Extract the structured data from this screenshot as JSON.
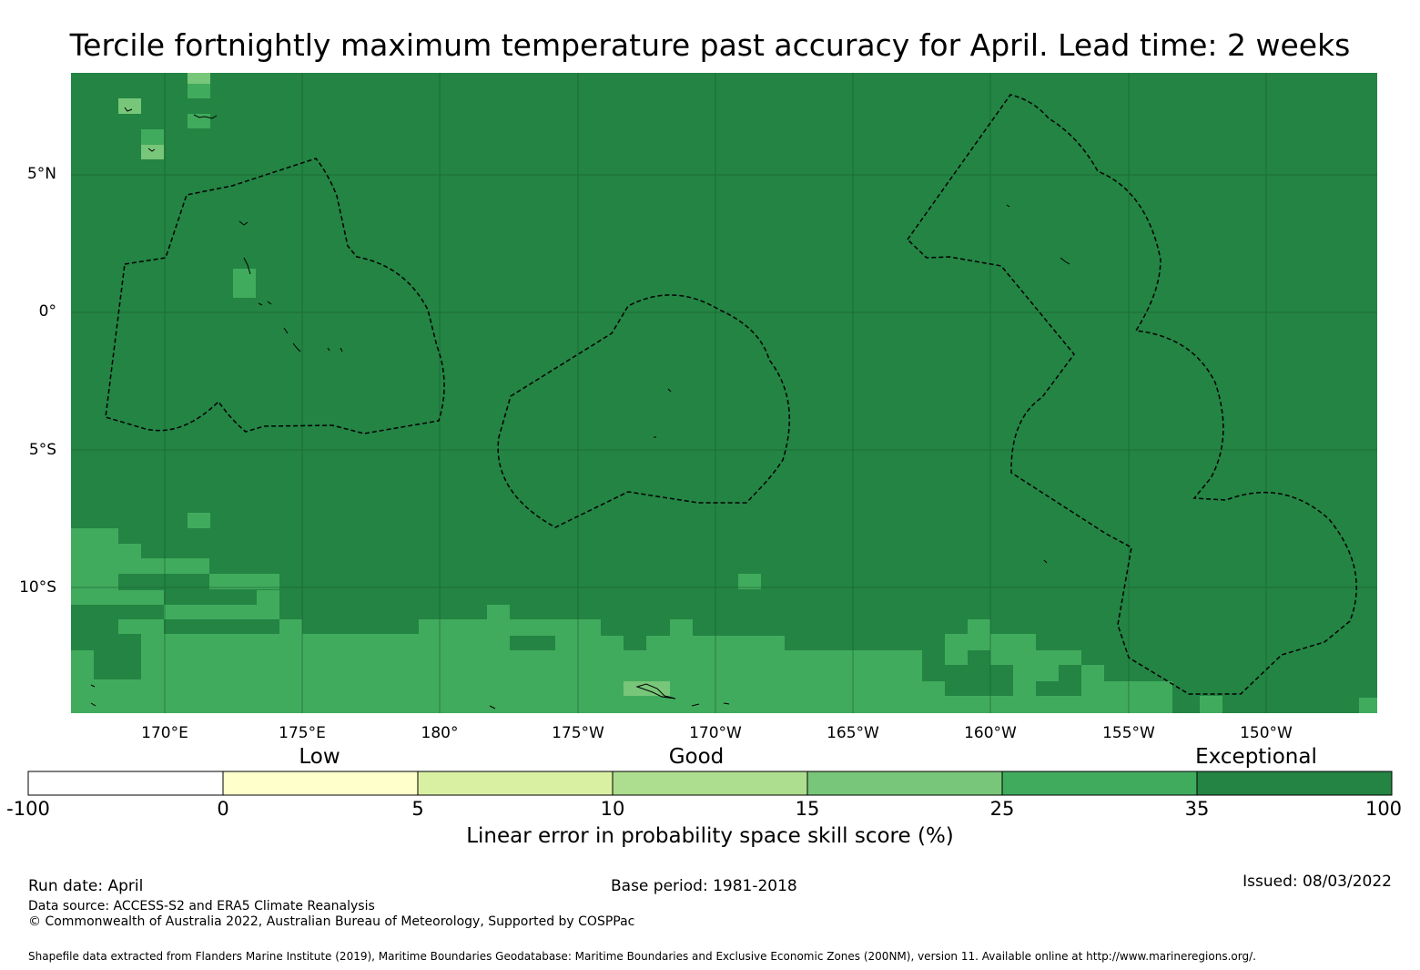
{
  "title": "Tercile fortnightly maximum temperature past accuracy for April. Lead time: 2 weeks",
  "axes": {
    "lat_labels": [
      "5°N",
      "0°",
      "5°S",
      "10°S"
    ],
    "lon_labels": [
      "170°E",
      "175°E",
      "180°",
      "175°W",
      "170°W",
      "165°W",
      "160°W",
      "155°W",
      "150°W"
    ]
  },
  "legend": {
    "categories": [
      "Low",
      "Good",
      "Exceptional"
    ],
    "ticks": [
      "-100",
      "0",
      "5",
      "10",
      "15",
      "25",
      "35",
      "100"
    ],
    "colors": [
      "#ffffff",
      "#ffffcc",
      "#d9f0a3",
      "#addd8e",
      "#78c679",
      "#41ab5d",
      "#238443"
    ],
    "title": "Linear error in probability space skill score (%)"
  },
  "footer": {
    "run_date": "Run date: April",
    "base_period": "Base period: 1981-2018",
    "issued": "Issued: 08/03/2022",
    "data_source": "Data source: ACCESS-S2 and ERA5 Climate Reanalysis",
    "copyright": "© Commonwealth of Australia 2022, Australian Bureau of Meteorology, Supported by COSPPac",
    "shapefile": "Shapefile data extracted from Flanders Marine Institute (2019), Maritime Boundaries Geodatabase: Maritime Boundaries and Exclusive Economic Zones (200NM), version 11. Available online at http://www.marineregions.org/."
  }
}
